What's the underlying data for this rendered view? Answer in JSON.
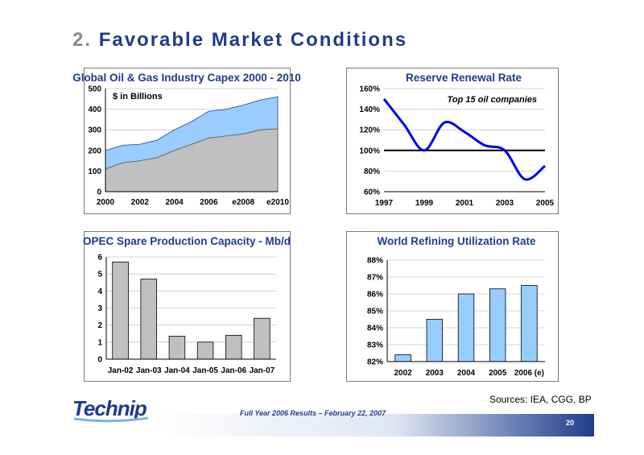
{
  "slide": {
    "title_num": "2.",
    "title_text": "Favorable Market Conditions",
    "sources": "Sources: IEA, CGG, BP",
    "footer": "Full Year 2006 Results – February 22, 2007",
    "page_number": "20",
    "logo": "Technip"
  },
  "colors": {
    "title": "#1f3c8c",
    "area_blue": "#99ccff",
    "area_grey": "#c0c0c0",
    "line_blue": "#0000ee",
    "bar_grey": "#c0c0c0",
    "bar_blue": "#99ccff"
  },
  "chart_data": [
    {
      "type": "area",
      "title": "Global Oil & Gas Industry Capex 2000 - 2010",
      "annotation": "$ in Billions",
      "x": [
        "2000",
        "2001",
        "2002",
        "2003",
        "2004",
        "2005",
        "2006",
        "2007",
        "e2008",
        "2009",
        "e2010"
      ],
      "x_tick_labels": [
        "2000",
        "2002",
        "2004",
        "2006",
        "e2008",
        "e2010"
      ],
      "y_ticks": [
        "0",
        "100",
        "200",
        "300",
        "400",
        "500"
      ],
      "ylim": [
        0,
        500
      ],
      "grid": true,
      "series": [
        {
          "values": [
            110,
            140,
            150,
            165,
            200,
            230,
            260,
            270,
            280,
            300,
            305
          ]
        },
        {
          "values": [
            200,
            225,
            230,
            250,
            300,
            340,
            390,
            400,
            420,
            445,
            460
          ]
        }
      ]
    },
    {
      "type": "line",
      "title": "Reserve Renewal Rate",
      "annotation": "Top 15 oil companies",
      "x": [
        1997,
        1998,
        1999,
        2000,
        2001,
        2002,
        2003,
        2004,
        2005
      ],
      "x_tick_labels": [
        "1997",
        "1999",
        "2001",
        "2003",
        "2005"
      ],
      "y_ticks": [
        "60%",
        "80%",
        "100%",
        "120%",
        "140%",
        "160%"
      ],
      "ylim": [
        60,
        160
      ],
      "reference_line": 100,
      "grid": true,
      "series": [
        {
          "values": [
            150,
            125,
            100,
            127,
            118,
            105,
            100,
            72,
            85
          ]
        }
      ]
    },
    {
      "type": "bar",
      "title": "OPEC Spare Production Capacity - Mb/d",
      "categories": [
        "Jan-02",
        "Jan-03",
        "Jan-04",
        "Jan-05",
        "Jan-06",
        "Jan-07"
      ],
      "y_ticks": [
        "0",
        "1",
        "2",
        "3",
        "4",
        "5",
        "6"
      ],
      "ylim": [
        0,
        6
      ],
      "grid": true,
      "values": [
        5.7,
        4.7,
        1.35,
        1.0,
        1.4,
        2.4
      ]
    },
    {
      "type": "bar",
      "title": "World Refining Utilization Rate",
      "categories": [
        "2002",
        "2003",
        "2004",
        "2005",
        "2006 (e)"
      ],
      "y_ticks": [
        "82%",
        "83%",
        "84%",
        "85%",
        "86%",
        "87%",
        "88%"
      ],
      "ylim": [
        82,
        88
      ],
      "grid": true,
      "values": [
        82.4,
        84.5,
        86.0,
        86.3,
        86.5
      ]
    }
  ]
}
